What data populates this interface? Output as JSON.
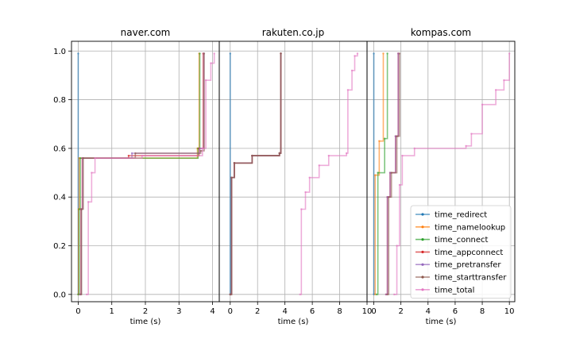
{
  "chart_data": {
    "type": "line",
    "shared_ylim": [
      -0.03,
      1.04
    ],
    "yticks": [
      0.0,
      0.2,
      0.4,
      0.6,
      0.8,
      1.0
    ],
    "ytick_labels": [
      "0.0",
      "0.2",
      "0.4",
      "0.6",
      "0.8",
      "1.0"
    ],
    "grid": true,
    "legend_placement": "lower-right",
    "series_names": [
      "time_redirect",
      "time_namelookup",
      "time_connect",
      "time_appconnect",
      "time_pretransfer",
      "time_starttransfer",
      "time_total"
    ],
    "colors": {
      "time_redirect": "#1f77b4",
      "time_namelookup": "#ff7f0e",
      "time_connect": "#2ca02c",
      "time_appconnect": "#d62728",
      "time_pretransfer": "#9467bd",
      "time_starttransfer": "#8c564b",
      "time_total": "#e377c2"
    },
    "subplots": [
      {
        "title": "naver.com",
        "xlabel": "time (s)",
        "xlim": [
          -0.2,
          4.2
        ],
        "xticks": [
          0,
          1,
          2,
          3,
          4
        ],
        "xtick_labels": [
          "0",
          "1",
          "2",
          "3",
          "4"
        ],
        "series": [
          {
            "name": "time_redirect",
            "points": [
              [
                0.0,
                0.0
              ],
              [
                0.0,
                0.99
              ]
            ]
          },
          {
            "name": "time_namelookup",
            "points": [
              [
                0.0,
                0.0
              ],
              [
                0.01,
                0.35
              ],
              [
                0.03,
                0.56
              ],
              [
                3.55,
                0.6
              ],
              [
                3.6,
                0.99
              ]
            ]
          },
          {
            "name": "time_connect",
            "points": [
              [
                0.0,
                0.0
              ],
              [
                0.03,
                0.35
              ],
              [
                0.06,
                0.56
              ],
              [
                3.57,
                0.6
              ],
              [
                3.62,
                0.99
              ]
            ]
          },
          {
            "name": "time_appconnect",
            "points": [
              [
                0.05,
                0.0
              ],
              [
                0.08,
                0.35
              ],
              [
                0.12,
                0.56
              ],
              [
                1.5,
                0.57
              ],
              [
                3.6,
                0.6
              ],
              [
                3.72,
                0.99
              ]
            ]
          },
          {
            "name": "time_pretransfer",
            "points": [
              [
                0.05,
                0.0
              ],
              [
                0.09,
                0.35
              ],
              [
                0.13,
                0.56
              ],
              [
                1.6,
                0.58
              ],
              [
                3.62,
                0.6
              ],
              [
                3.74,
                0.99
              ]
            ]
          },
          {
            "name": "time_starttransfer",
            "points": [
              [
                0.08,
                0.0
              ],
              [
                0.1,
                0.35
              ],
              [
                0.15,
                0.56
              ],
              [
                1.7,
                0.58
              ],
              [
                3.65,
                0.59
              ],
              [
                3.75,
                0.99
              ]
            ]
          },
          {
            "name": "time_total",
            "points": [
              [
                0.25,
                0.0
              ],
              [
                0.3,
                0.38
              ],
              [
                0.4,
                0.5
              ],
              [
                0.5,
                0.56
              ],
              [
                1.9,
                0.57
              ],
              [
                3.7,
                0.6
              ],
              [
                3.8,
                0.88
              ],
              [
                3.95,
                0.95
              ],
              [
                4.05,
                0.99
              ]
            ]
          }
        ]
      },
      {
        "title": "rakuten.co.jp",
        "xlabel": "time (s)",
        "xlim": [
          -0.8,
          10.0
        ],
        "xticks": [
          0,
          2,
          4,
          6,
          8,
          10
        ],
        "xtick_labels": [
          "0",
          "2",
          "4",
          "6",
          "8",
          "10"
        ],
        "series": [
          {
            "name": "time_redirect",
            "points": [
              [
                0.0,
                0.0
              ],
              [
                0.0,
                0.99
              ]
            ]
          },
          {
            "name": "time_namelookup",
            "points": [
              [
                0.0,
                0.0
              ],
              [
                0.1,
                0.48
              ],
              [
                0.3,
                0.54
              ],
              [
                1.6,
                0.57
              ],
              [
                3.6,
                0.58
              ],
              [
                3.7,
                0.99
              ]
            ]
          },
          {
            "name": "time_connect",
            "points": [
              [
                0.0,
                0.0
              ],
              [
                0.1,
                0.48
              ],
              [
                0.3,
                0.54
              ],
              [
                1.6,
                0.57
              ],
              [
                3.6,
                0.58
              ],
              [
                3.7,
                0.99
              ]
            ]
          },
          {
            "name": "time_appconnect",
            "points": [
              [
                0.0,
                0.0
              ],
              [
                0.1,
                0.48
              ],
              [
                0.3,
                0.54
              ],
              [
                1.6,
                0.57
              ],
              [
                3.6,
                0.58
              ],
              [
                3.7,
                0.99
              ]
            ]
          },
          {
            "name": "time_pretransfer",
            "points": [
              [
                0.0,
                0.0
              ],
              [
                0.1,
                0.48
              ],
              [
                0.3,
                0.54
              ],
              [
                1.6,
                0.57
              ],
              [
                3.6,
                0.58
              ],
              [
                3.7,
                0.99
              ]
            ]
          },
          {
            "name": "time_starttransfer",
            "points": [
              [
                0.0,
                0.0
              ],
              [
                0.1,
                0.48
              ],
              [
                0.3,
                0.54
              ],
              [
                1.6,
                0.57
              ],
              [
                3.6,
                0.58
              ],
              [
                3.7,
                0.99
              ]
            ]
          },
          {
            "name": "time_total",
            "points": [
              [
                5.1,
                0.0
              ],
              [
                5.2,
                0.35
              ],
              [
                5.5,
                0.42
              ],
              [
                5.8,
                0.48
              ],
              [
                6.5,
                0.53
              ],
              [
                7.2,
                0.57
              ],
              [
                8.5,
                0.58
              ],
              [
                8.6,
                0.84
              ],
              [
                8.9,
                0.92
              ],
              [
                9.1,
                0.98
              ],
              [
                9.3,
                0.99
              ]
            ]
          }
        ]
      },
      {
        "title": "kompas.com",
        "xlabel": "time (s)",
        "xlim": [
          -0.5,
          10.4
        ],
        "xticks": [
          0,
          2,
          4,
          6,
          8,
          10
        ],
        "xtick_labels": [
          "0",
          "2",
          "4",
          "6",
          "8",
          "10"
        ],
        "series": [
          {
            "name": "time_redirect",
            "points": [
              [
                0.0,
                0.0
              ],
              [
                0.0,
                0.99
              ]
            ]
          },
          {
            "name": "time_namelookup",
            "points": [
              [
                0.1,
                0.0
              ],
              [
                0.1,
                0.49
              ],
              [
                0.4,
                0.63
              ],
              [
                0.7,
                0.99
              ]
            ]
          },
          {
            "name": "time_connect",
            "points": [
              [
                0.2,
                0.0
              ],
              [
                0.3,
                0.5
              ],
              [
                0.8,
                0.64
              ],
              [
                1.0,
                0.99
              ]
            ]
          },
          {
            "name": "time_appconnect",
            "points": [
              [
                0.9,
                0.0
              ],
              [
                1.0,
                0.4
              ],
              [
                1.2,
                0.5
              ],
              [
                1.6,
                0.65
              ],
              [
                1.8,
                0.99
              ]
            ]
          },
          {
            "name": "time_pretransfer",
            "points": [
              [
                0.9,
                0.0
              ],
              [
                1.0,
                0.4
              ],
              [
                1.2,
                0.5
              ],
              [
                1.6,
                0.65
              ],
              [
                1.8,
                0.99
              ]
            ]
          },
          {
            "name": "time_starttransfer",
            "points": [
              [
                1.0,
                0.0
              ],
              [
                1.1,
                0.4
              ],
              [
                1.3,
                0.5
              ],
              [
                1.7,
                0.65
              ],
              [
                1.9,
                0.99
              ]
            ]
          },
          {
            "name": "time_total",
            "points": [
              [
                1.5,
                0.0
              ],
              [
                1.7,
                0.2
              ],
              [
                1.9,
                0.45
              ],
              [
                2.1,
                0.57
              ],
              [
                3.0,
                0.6
              ],
              [
                6.8,
                0.61
              ],
              [
                7.2,
                0.66
              ],
              [
                8.0,
                0.78
              ],
              [
                9.0,
                0.84
              ],
              [
                9.6,
                0.88
              ],
              [
                10.0,
                0.99
              ]
            ]
          }
        ]
      }
    ]
  }
}
